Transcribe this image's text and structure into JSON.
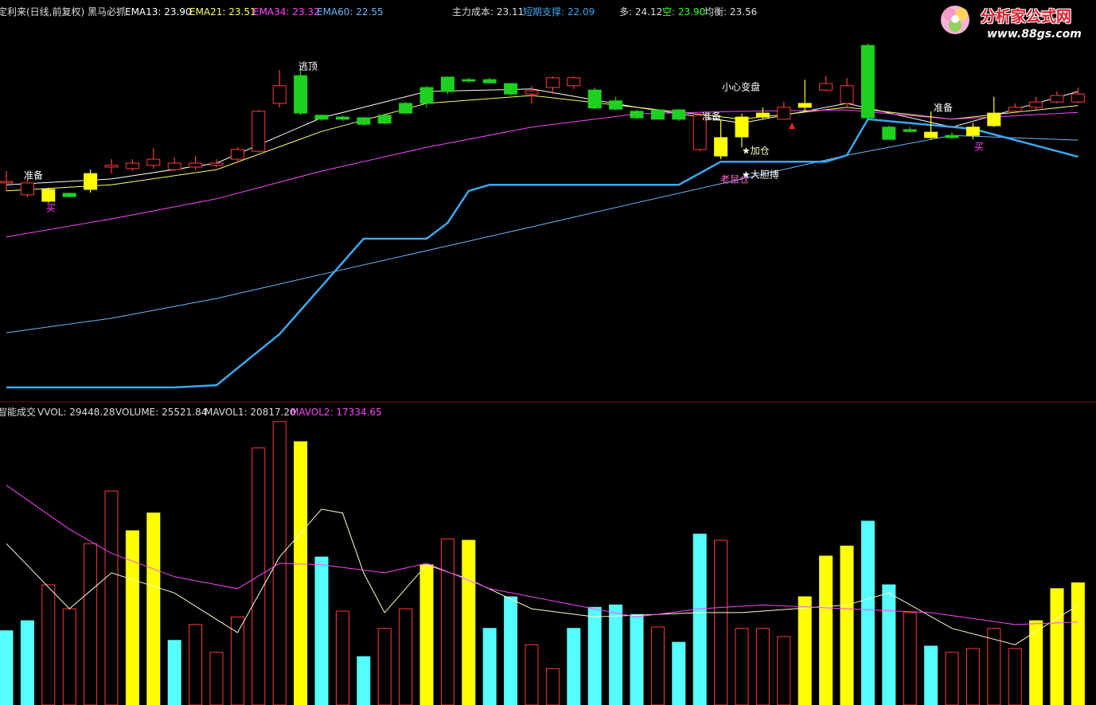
{
  "watermark": {
    "title": "分析家公式网",
    "url": "www.88gs.com"
  },
  "chart_data": [
    {
      "type": "candlestick",
      "title": "定利来(日线,前复权) 黑马必抓",
      "ylim": [
        15.5,
        26
      ],
      "hollow_color": "#ff3c3c",
      "open": [
        21.36,
        21.03,
        21.18,
        21.07,
        21.62,
        21.8,
        21.76,
        21.85,
        21.73,
        21.8,
        21.85,
        22.02,
        22.24,
        23.57,
        24.34,
        23.24,
        23.19,
        23.17,
        23.24,
        23.57,
        24.01,
        24.3,
        24.23,
        24.23,
        24.12,
        23.83,
        24.01,
        24.06,
        23.94,
        23.64,
        23.35,
        23.39,
        23.39,
        22.29,
        22.62,
        22.64,
        23.19,
        23.13,
        23.46,
        23.94,
        23.57,
        25.18,
        22.91,
        22.84,
        22.77,
        22.68,
        22.91,
        23.3,
        23.35,
        23.46,
        23.61,
        23.61
      ],
      "high": [
        21.69,
        21.47,
        21.23,
        21.09,
        21.73,
        22.02,
        22.02,
        22.33,
        22.07,
        22.11,
        22.02,
        22.35,
        23.39,
        24.5,
        24.5,
        23.26,
        23.24,
        23.19,
        23.28,
        23.61,
        24.06,
        24.32,
        24.28,
        24.28,
        24.14,
        24.06,
        24.32,
        24.32,
        24.01,
        23.75,
        23.39,
        23.41,
        23.41,
        23.3,
        23.13,
        23.28,
        23.46,
        23.61,
        24.23,
        24.34,
        24.28,
        25.23,
        22.95,
        22.91,
        23.35,
        22.77,
        23.02,
        23.75,
        23.57,
        23.75,
        23.9,
        24.01
      ],
      "low": [
        21.14,
        20.96,
        20.81,
        20.96,
        21.09,
        21.62,
        21.69,
        21.76,
        21.69,
        21.71,
        21.8,
        21.91,
        22.2,
        23.46,
        23.24,
        23.08,
        23.08,
        22.95,
        22.99,
        23.28,
        23.46,
        23.83,
        24.14,
        24.12,
        23.79,
        23.57,
        23.83,
        23.97,
        23.41,
        23.39,
        23.13,
        23.13,
        23.08,
        22.24,
        22.02,
        22.35,
        23.13,
        23.13,
        23.35,
        23.9,
        23.46,
        23.13,
        22.57,
        22.77,
        22.57,
        22.57,
        22.57,
        22.91,
        23.3,
        23.41,
        23.57,
        23.57
      ],
      "close": [
        21.4,
        21.36,
        20.85,
        20.98,
        21.18,
        21.85,
        21.91,
        22.02,
        21.91,
        21.91,
        21.91,
        22.29,
        23.35,
        24.06,
        23.3,
        23.13,
        23.13,
        22.99,
        23.02,
        23.3,
        23.57,
        23.9,
        24.19,
        24.14,
        23.83,
        23.92,
        24.28,
        24.28,
        23.44,
        23.41,
        23.17,
        23.13,
        23.13,
        23.24,
        22.11,
        23.19,
        23.3,
        23.46,
        23.57,
        24.12,
        24.06,
        23.17,
        22.57,
        22.79,
        22.62,
        22.62,
        22.68,
        22.95,
        23.46,
        23.61,
        23.79,
        23.83
      ],
      "colors": [
        "#ff3c3c",
        "#ff3c3c",
        "#ffff00",
        "#1fd11f",
        "#ffff00",
        "#ff3c3c",
        "#ff3c3c",
        "#ff3c3c",
        "#ff3c3c",
        "#ff3c3c",
        "#ff3c3c",
        "#ff3c3c",
        "#ff3c3c",
        "#ff3c3c",
        "#1fd11f",
        "#1fd11f",
        "#1fd11f",
        "#1fd11f",
        "#1fd11f",
        "#1fd11f",
        "#1fd11f",
        "#1fd11f",
        "#1fd11f",
        "#1fd11f",
        "#1fd11f",
        "#ff3c3c",
        "#ff3c3c",
        "#ff3c3c",
        "#1fd11f",
        "#1fd11f",
        "#1fd11f",
        "#1fd11f",
        "#1fd11f",
        "#ff3c3c",
        "#ffff00",
        "#ffff00",
        "#ffff00",
        "#ff3c3c",
        "#ffff00",
        "#ff3c3c",
        "#ff3c3c",
        "#1fd11f",
        "#1fd11f",
        "#1fd11f",
        "#ffff00",
        "#1fd11f",
        "#ffff00",
        "#ffff00",
        "#ff3c3c",
        "#ff3c3c",
        "#ff3c3c",
        "#ff3c3c"
      ],
      "series": [
        {
          "name": "EMA13",
          "color": "#ffffff",
          "last_label": "23.90",
          "x": [
            0,
            5,
            10,
            15,
            20,
            25,
            30,
            35,
            40,
            45,
            51
          ],
          "values": [
            21.31,
            21.47,
            21.91,
            23.17,
            23.9,
            23.97,
            23.46,
            23.02,
            23.57,
            22.91,
            23.9
          ]
        },
        {
          "name": "EMA21",
          "color": "#ffff66",
          "last_label": "23.51",
          "x": [
            0,
            5,
            10,
            15,
            20,
            25,
            30,
            35,
            40,
            45,
            51
          ],
          "values": [
            21.14,
            21.31,
            21.73,
            22.79,
            23.57,
            23.79,
            23.46,
            23.13,
            23.46,
            23.13,
            23.51
          ]
        },
        {
          "name": "EMA34",
          "color": "#ff44ff",
          "last_label": "23.32",
          "x": [
            0,
            5,
            10,
            15,
            20,
            25,
            30,
            35,
            40,
            45,
            51
          ],
          "values": [
            19.86,
            20.36,
            20.92,
            21.69,
            22.35,
            22.91,
            23.28,
            23.35,
            23.39,
            23.13,
            23.32
          ]
        },
        {
          "name": "EMA60",
          "color": "#6fb6ff",
          "last_label": "22.55",
          "x": [
            0,
            5,
            10,
            15,
            20,
            25,
            30,
            35,
            40,
            45,
            51
          ],
          "values": [
            17.2,
            17.6,
            18.15,
            18.82,
            19.48,
            20.14,
            20.81,
            21.47,
            22.13,
            22.68,
            22.55
          ]
        },
        {
          "name": "短期支撑",
          "color": "#3aa8f0",
          "width": 2.5,
          "last_label": "22.09",
          "x": [
            0,
            8,
            10,
            13,
            17,
            20,
            21,
            22,
            23,
            32,
            34,
            39,
            40,
            41,
            46,
            51
          ],
          "values": [
            15.68,
            15.68,
            15.74,
            17.16,
            19.81,
            19.81,
            20.25,
            21.14,
            21.31,
            21.31,
            21.95,
            21.95,
            22.13,
            23.13,
            22.86,
            22.09
          ]
        }
      ],
      "indicators": [
        {
          "name": "主力成本",
          "value": 23.11,
          "label": "23.11",
          "color": "#dddddd"
        },
        {
          "name": "多",
          "value": 24.12,
          "label": "24.12",
          "color": "#dddddd"
        },
        {
          "name": "空",
          "value": 23.9,
          "label": "23.90",
          "color": "#33ff33"
        },
        {
          "name": "均衡",
          "value": 23.56,
          "label": "23.56",
          "color": "#dddddd"
        }
      ],
      "annotations": [
        {
          "text": "准备",
          "color": "#ffffff"
        },
        {
          "text": "买",
          "color": "#ff44ff"
        },
        {
          "text": "逃顶",
          "color": "#ffffff"
        },
        {
          "text": "小心变盘",
          "color": "#ffffff"
        },
        {
          "text": "准备",
          "color": "#ffffff"
        },
        {
          "text": "老鼠仓",
          "color": "#ff66cc"
        },
        {
          "text": "★加仓",
          "color": "#ffffcc"
        },
        {
          "text": "★大胆搏",
          "color": "#ffffff"
        },
        {
          "text": "准备",
          "color": "#ffffff"
        },
        {
          "text": "买",
          "color": "#ff44ff"
        }
      ]
    },
    {
      "type": "bar",
      "title": "智能成交",
      "ylim": [
        0,
        60000
      ],
      "hollow_color": "#ff3c3c",
      "volume_name": "VOLUME",
      "values": [
        15500,
        17600,
        25100,
        20100,
        33700,
        44700,
        36400,
        40100,
        13500,
        16800,
        11000,
        18400,
        53700,
        59200,
        55000,
        30900,
        19600,
        10100,
        16000,
        20100,
        29300,
        34700,
        34400,
        16000,
        22600,
        12600,
        7600,
        16000,
        20400,
        20900,
        18900,
        16300,
        13100,
        35700,
        34400,
        16000,
        16000,
        14300,
        22600,
        31100,
        33200,
        38400,
        25100,
        19300,
        12300,
        11000,
        11800,
        16000,
        11800,
        17600,
        24300,
        25521.84
      ],
      "colors": [
        "#55ffff",
        "#55ffff",
        "#ff3c3c",
        "#ff3c3c",
        "#ff3c3c",
        "#ff3c3c",
        "#ffff00",
        "#ffff00",
        "#55ffff",
        "#ff3c3c",
        "#ff3c3c",
        "#ff3c3c",
        "#ff3c3c",
        "#ff3c3c",
        "#ffff00",
        "#55ffff",
        "#ff3c3c",
        "#55ffff",
        "#ff3c3c",
        "#ff3c3c",
        "#ffff00",
        "#ff3c3c",
        "#ffff00",
        "#55ffff",
        "#55ffff",
        "#ff3c3c",
        "#ff3c3c",
        "#55ffff",
        "#55ffff",
        "#55ffff",
        "#55ffff",
        "#ff3c3c",
        "#55ffff",
        "#55ffff",
        "#ff3c3c",
        "#ff3c3c",
        "#ff3c3c",
        "#ff3c3c",
        "#ffff00",
        "#ffff00",
        "#ffff00",
        "#55ffff",
        "#55ffff",
        "#ff3c3c",
        "#55ffff",
        "#ff3c3c",
        "#ff3c3c",
        "#ff3c3c",
        "#ff3c3c",
        "#ffff00",
        "#ffff00",
        "#ffff00"
      ],
      "indicators": [
        {
          "name": "VVOL",
          "value": 29448.28,
          "label": "29448.28",
          "color": "#dddddd"
        }
      ],
      "series": [
        {
          "name": "MAVOL1",
          "color": "#ffffcc",
          "last_label": "20817.20",
          "x": [
            0,
            3,
            5,
            8,
            11,
            13,
            15,
            16,
            17,
            18,
            20,
            22,
            25,
            28,
            33,
            35,
            40,
            42,
            45,
            48,
            51
          ],
          "values": [
            33700,
            20100,
            27600,
            23400,
            15100,
            30900,
            40900,
            40100,
            27600,
            19300,
            29300,
            26300,
            20100,
            18400,
            19300,
            19300,
            20900,
            23400,
            16000,
            12600,
            20817.2
          ]
        },
        {
          "name": "MAVOL2",
          "color": "#ff44ff",
          "last_label": "17334.65",
          "x": [
            0,
            3,
            5,
            8,
            11,
            13,
            15,
            18,
            20,
            23,
            27,
            30,
            33,
            36,
            40,
            44,
            48,
            51
          ],
          "values": [
            45900,
            36700,
            31700,
            26800,
            24300,
            29600,
            29300,
            27600,
            29600,
            24300,
            20900,
            18400,
            20100,
            20900,
            20100,
            19300,
            16800,
            17334.65
          ]
        }
      ]
    }
  ]
}
